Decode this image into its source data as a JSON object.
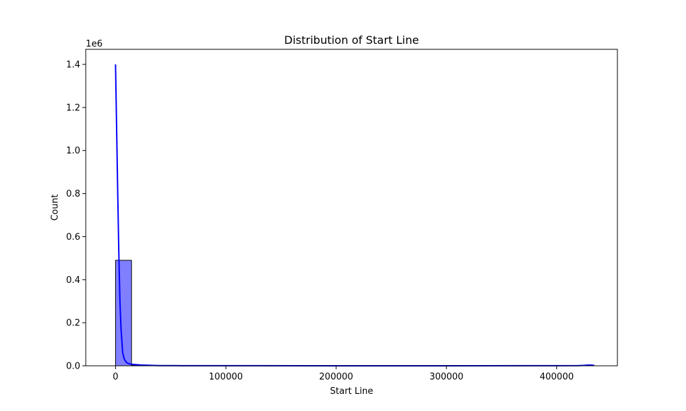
{
  "chart_data": {
    "type": "bar",
    "title": "Distribution of Start Line",
    "xlabel": "Start Line",
    "ylabel": "Count",
    "y_multiplier_label": "1e6",
    "xlim": [
      -27000,
      455000
    ],
    "ylim": [
      0,
      1470000
    ],
    "x_ticks": [
      0,
      100000,
      200000,
      300000,
      400000
    ],
    "x_tick_labels": [
      "0",
      "100000",
      "200000",
      "300000",
      "400000"
    ],
    "y_ticks": [
      0,
      200000,
      400000,
      600000,
      800000,
      1000000,
      1200000,
      1400000
    ],
    "y_tick_labels": [
      "0.0",
      "0.2",
      "0.4",
      "0.6",
      "0.8",
      "1.0",
      "1.2",
      "1.4"
    ],
    "bins": [
      {
        "x0": 0,
        "x1": 14500,
        "count": 490000
      },
      {
        "x0": 14500,
        "x1": 29000,
        "count": 2000
      },
      {
        "x0": 29000,
        "x1": 43500,
        "count": 600
      },
      {
        "x0": 43500,
        "x1": 58000,
        "count": 300
      },
      {
        "x0": 58000,
        "x1": 72500,
        "count": 200
      },
      {
        "x0": 72500,
        "x1": 87000,
        "count": 150
      },
      {
        "x0": 87000,
        "x1": 101500,
        "count": 100
      },
      {
        "x0": 101500,
        "x1": 116000,
        "count": 80
      },
      {
        "x0": 116000,
        "x1": 130500,
        "count": 60
      },
      {
        "x0": 130500,
        "x1": 145000,
        "count": 50
      },
      {
        "x0": 145000,
        "x1": 159500,
        "count": 40
      },
      {
        "x0": 159500,
        "x1": 174000,
        "count": 30
      },
      {
        "x0": 174000,
        "x1": 188500,
        "count": 20
      },
      {
        "x0": 188500,
        "x1": 203000,
        "count": 20
      },
      {
        "x0": 203000,
        "x1": 217500,
        "count": 10
      },
      {
        "x0": 217500,
        "x1": 232000,
        "count": 10
      },
      {
        "x0": 232000,
        "x1": 246500,
        "count": 10
      },
      {
        "x0": 246500,
        "x1": 261000,
        "count": 10
      },
      {
        "x0": 261000,
        "x1": 275500,
        "count": 5
      },
      {
        "x0": 275500,
        "x1": 290000,
        "count": 5
      },
      {
        "x0": 290000,
        "x1": 304500,
        "count": 5
      },
      {
        "x0": 304500,
        "x1": 319000,
        "count": 5
      },
      {
        "x0": 319000,
        "x1": 333500,
        "count": 5
      },
      {
        "x0": 333500,
        "x1": 348000,
        "count": 5
      },
      {
        "x0": 348000,
        "x1": 362500,
        "count": 5
      },
      {
        "x0": 362500,
        "x1": 377000,
        "count": 5
      },
      {
        "x0": 377000,
        "x1": 391500,
        "count": 5
      },
      {
        "x0": 391500,
        "x1": 406000,
        "count": 5
      },
      {
        "x0": 406000,
        "x1": 420500,
        "count": 5
      },
      {
        "x0": 420500,
        "x1": 435000,
        "count": 5
      }
    ],
    "kde_line": {
      "x": [
        0,
        1000,
        2000,
        3000,
        4000,
        5000,
        6500,
        8000,
        10000,
        13000,
        17000,
        25000,
        40000,
        60000,
        100000,
        200000,
        300000,
        400000,
        420000,
        425000,
        428000,
        432000,
        434000
      ],
      "y": [
        1400000,
        1100000,
        800000,
        520000,
        300000,
        170000,
        60000,
        30000,
        15000,
        8000,
        6000,
        3000,
        1000,
        500,
        300,
        200,
        200,
        500,
        1000,
        2000,
        3000,
        3000,
        2000
      ]
    },
    "bar_color": "#0000ff",
    "bar_opacity": 0.5,
    "line_color": "#0000ff",
    "grid": false,
    "legend": "none"
  }
}
